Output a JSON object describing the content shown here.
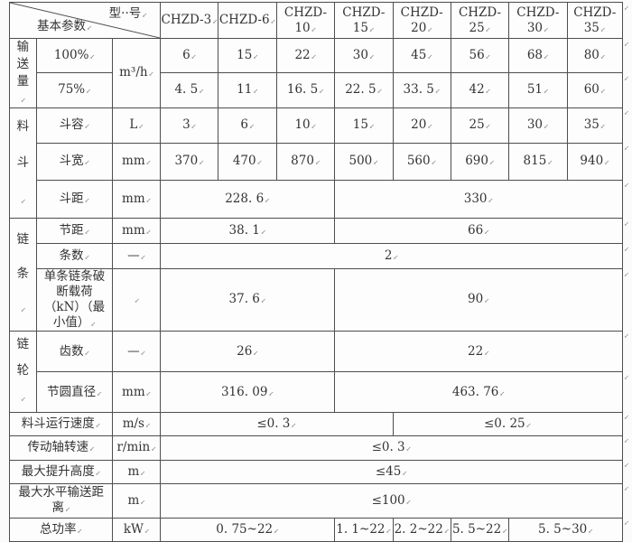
{
  "return_mark": "↙",
  "colors": {
    "border": "#4e4e4e",
    "text": "#333333",
    "background": "#fbfbfb"
  },
  "table": {
    "corner": {
      "top": "型··号",
      "bottom": "基本参数"
    },
    "models": [
      "CHZD-3",
      "CHZD-6",
      "CHZD-10",
      "CHZD-15",
      "CHZD-20",
      "CHZD-25",
      "CHZD-30",
      "CHZD-35"
    ],
    "groups": {
      "conveying": "输送量",
      "bucket": "料斗",
      "chain": "链条",
      "sprocket": "链轮"
    },
    "rows": {
      "cap100": {
        "label": "100%",
        "unit": "m³/h",
        "values": [
          "6",
          "15",
          "22",
          "30",
          "45",
          "56",
          "68",
          "80"
        ]
      },
      "cap75": {
        "label": "75%",
        "values": [
          "4. 5",
          "11",
          "16. 5",
          "22. 5",
          "33. 5",
          "42",
          "51",
          "60"
        ]
      },
      "bucket_volume": {
        "label": "斗容",
        "unit": "L",
        "values": [
          "3",
          "6",
          "10",
          "15",
          "20",
          "25",
          "30",
          "35"
        ]
      },
      "bucket_width": {
        "label": "斗宽",
        "unit": "mm",
        "values": [
          "370",
          "470",
          "870",
          "500",
          "560",
          "690",
          "815",
          "940"
        ]
      },
      "bucket_spacing": {
        "label": "斗距",
        "unit": "mm",
        "left": "228. 6",
        "right": "330"
      },
      "chain_pitch": {
        "label": "节距",
        "unit": "mm",
        "left": "38. 1",
        "right": "66"
      },
      "chain_count": {
        "label": "条数",
        "unit": "—",
        "value": "2"
      },
      "breaking_load": {
        "label": "单条链条破断载荷（kN）（最小值）",
        "unit": "",
        "left": "37. 6",
        "right": "90"
      },
      "teeth_count": {
        "label": "齿数",
        "unit": "—",
        "left": "26",
        "right": "22"
      },
      "pitch_diameter": {
        "label": "节圆直径",
        "unit": "mm",
        "left": "316. 09",
        "right": "463. 76"
      },
      "bucket_speed": {
        "label": "料斗运行速度",
        "unit": "m/s",
        "left": "≤0. 3",
        "right": "≤0. 25"
      },
      "shaft_speed": {
        "label": "传动轴转速",
        "unit": "r/min",
        "value": "≤0. 3"
      },
      "max_lift_height": {
        "label": "最大提升高度",
        "unit": "m",
        "value": "≤45"
      },
      "max_horizontal_distance": {
        "label": "最大水平输送距离",
        "unit": "m",
        "value": "≤100"
      },
      "total_power": {
        "label": "总功率",
        "unit": "kW",
        "values": [
          "0. 75~22",
          "1. 1~22",
          "2. 2~22",
          "5. 5~22",
          "5. 5~30"
        ]
      }
    }
  }
}
